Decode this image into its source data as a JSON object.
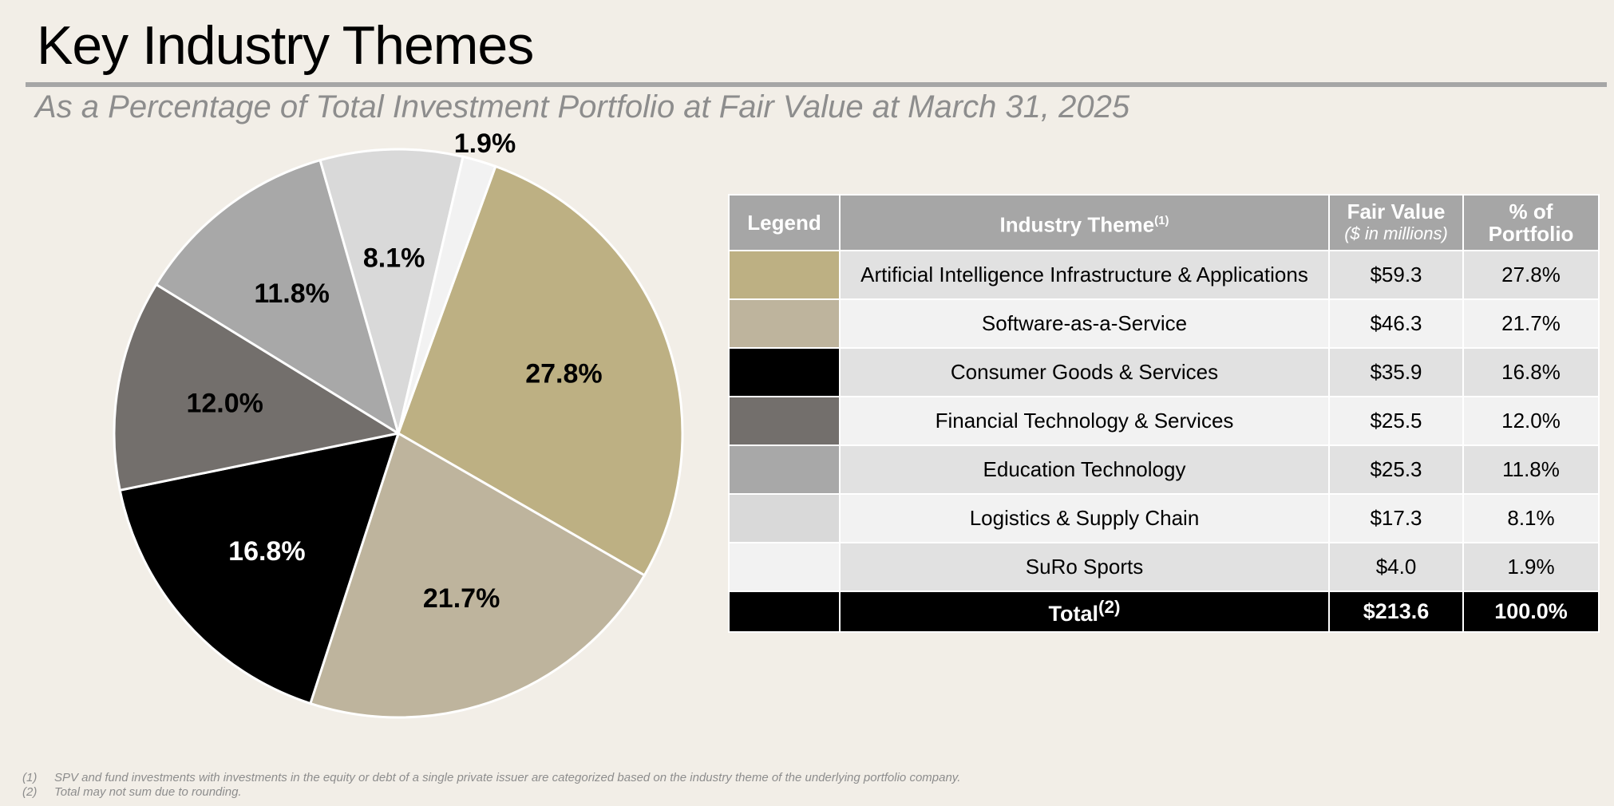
{
  "page": {
    "title": "Key Industry Themes",
    "subtitle": "As a Percentage of Total Investment Portfolio at Fair Value at March 31, 2025"
  },
  "table": {
    "headers": {
      "legend": "Legend",
      "theme": "Industry Theme",
      "theme_note": "(1)",
      "fair_value": "Fair Value",
      "fair_value_unit": "($ in millions)",
      "pct": "% of Portfolio"
    },
    "rows": [
      {
        "theme": "Artificial Intelligence Infrastructure & Applications",
        "fair_value": "$59.3",
        "pct": "27.8%",
        "color": "#bdb083"
      },
      {
        "theme": "Software-as-a-Service",
        "fair_value": "$46.3",
        "pct": "21.7%",
        "color": "#beb49d"
      },
      {
        "theme": "Consumer Goods & Services",
        "fair_value": "$35.9",
        "pct": "16.8%",
        "color": "#000000"
      },
      {
        "theme": "Financial Technology & Services",
        "fair_value": "$25.5",
        "pct": "12.0%",
        "color": "#736f6c"
      },
      {
        "theme": "Education Technology",
        "fair_value": "$25.3",
        "pct": "11.8%",
        "color": "#a8a8a8"
      },
      {
        "theme": "Logistics & Supply Chain",
        "fair_value": "$17.3",
        "pct": "8.1%",
        "color": "#d9d9d9"
      },
      {
        "theme": "SuRo Sports",
        "fair_value": "$4.0",
        "pct": "1.9%",
        "color": "#f2f2f2"
      }
    ],
    "total": {
      "label": "Total",
      "note": "(2)",
      "fair_value": "$213.6",
      "pct": "100.0%"
    }
  },
  "chart_data": {
    "type": "pie",
    "title": "",
    "categories": [
      "Artificial Intelligence Infrastructure & Applications",
      "Software-as-a-Service",
      "Consumer Goods & Services",
      "Financial Technology & Services",
      "Education Technology",
      "Logistics & Supply Chain",
      "SuRo Sports"
    ],
    "values": [
      27.8,
      21.7,
      16.8,
      12.0,
      11.8,
      8.1,
      1.9
    ],
    "labels": [
      "27.8%",
      "21.7%",
      "16.8%",
      "12.0%",
      "11.8%",
      "8.1%",
      "1.9%"
    ],
    "colors": [
      "#bdb083",
      "#beb49d",
      "#000000",
      "#736f6c",
      "#a8a8a8",
      "#d9d9d9",
      "#f2f2f2"
    ],
    "label_colors": [
      "#000000",
      "#000000",
      "#ffffff",
      "#000000",
      "#000000",
      "#000000",
      "#000000"
    ]
  },
  "footnotes": [
    {
      "num": "(1)",
      "text": "SPV and fund investments with investments in the equity or debt of a single private issuer are categorized based on the industry theme of the underlying portfolio company."
    },
    {
      "num": "(2)",
      "text": "Total may not sum due to rounding."
    }
  ]
}
